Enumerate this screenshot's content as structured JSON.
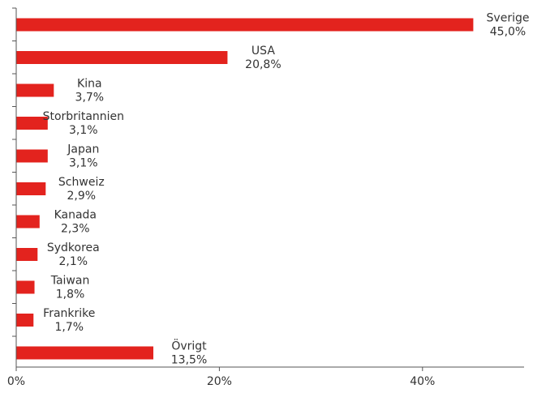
{
  "chart_data": {
    "type": "bar",
    "orientation": "horizontal",
    "categories": [
      "Sverige",
      "USA",
      "Kina",
      "Storbritannien",
      "Japan",
      "Schweiz",
      "Kanada",
      "Sydkorea",
      "Taiwan",
      "Frankrike",
      "Övrigt"
    ],
    "values": [
      45.0,
      20.8,
      3.7,
      3.1,
      3.1,
      2.9,
      2.3,
      2.1,
      1.8,
      1.7,
      13.5
    ],
    "value_labels": [
      "45,0%",
      "20,8%",
      "3,7%",
      "3,1%",
      "3,1%",
      "2,9%",
      "2,3%",
      "2,1%",
      "1,8%",
      "1,7%",
      "13,5%"
    ],
    "xlim": [
      0,
      50
    ],
    "x_ticks": [
      0,
      20,
      40
    ],
    "x_tick_labels": [
      "0%",
      "20%",
      "40%"
    ],
    "bar_color": "#e3231e",
    "grid": false,
    "legend": "none",
    "title": "",
    "xlabel": "",
    "ylabel": ""
  }
}
